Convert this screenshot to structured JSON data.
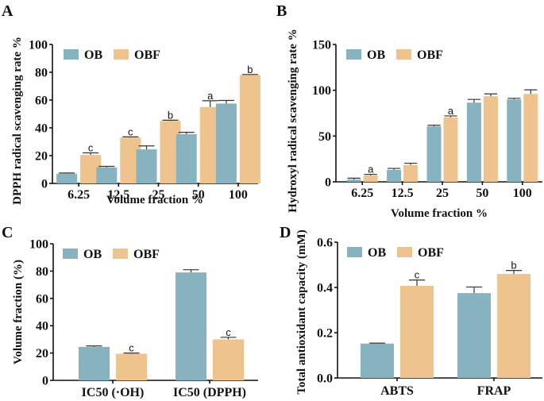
{
  "colors": {
    "OB": "#86b3bf",
    "OBF": "#efc38d"
  },
  "chart_data": [
    {
      "panel": "A",
      "type": "bar",
      "title": "",
      "xlabel": "Volume fraction %",
      "ylabel": "DPPH radical scavenging rate %",
      "ylim": [
        0,
        100
      ],
      "yticks": [
        0,
        20,
        40,
        60,
        80,
        100
      ],
      "ytick_labels": [
        "0",
        "20",
        "40",
        "60",
        "80",
        "100"
      ],
      "categories": [
        "6.25",
        "12.5",
        "25",
        "50",
        "100"
      ],
      "legend": [
        "OB",
        "OBF"
      ],
      "legend_position": "top-left",
      "series": [
        {
          "name": "OB",
          "values": [
            7,
            11.5,
            24.5,
            35.5,
            57.5
          ],
          "errors": [
            0.5,
            0.8,
            2.5,
            1.3,
            2.2
          ],
          "labels": [
            "",
            "",
            "",
            "",
            ""
          ]
        },
        {
          "name": "OBF",
          "values": [
            20.5,
            33,
            45,
            55,
            78
          ],
          "errors": [
            1.5,
            0.5,
            0.5,
            4.5,
            0.4
          ],
          "labels": [
            "c",
            "c",
            "b",
            "a",
            "b"
          ]
        }
      ]
    },
    {
      "panel": "B",
      "type": "bar",
      "title": "",
      "xlabel": "Volume fraction %",
      "ylabel": "Hydroxyl radical scavenging rate %",
      "ylim": [
        0,
        150
      ],
      "yticks": [
        0,
        50,
        100,
        150
      ],
      "ytick_labels": [
        "0",
        "50",
        "100",
        "150"
      ],
      "categories": [
        "6.25",
        "12.5",
        "25",
        "50",
        "100"
      ],
      "legend": [
        "OB",
        "OBF"
      ],
      "legend_position": "top-left",
      "series": [
        {
          "name": "OB",
          "values": [
            2.5,
            13,
            60.5,
            86.5,
            90
          ],
          "errors": [
            1.5,
            1.7,
            1.3,
            3.5,
            1.2
          ],
          "labels": [
            "",
            "",
            "",
            "",
            ""
          ]
        },
        {
          "name": "OBF",
          "values": [
            7,
            18.5,
            70.5,
            93.5,
            96
          ],
          "errors": [
            1.2,
            1.8,
            1.5,
            2.5,
            4.5
          ],
          "labels": [
            "a",
            "",
            "a",
            "",
            ""
          ]
        }
      ]
    },
    {
      "panel": "C",
      "type": "bar",
      "title": "",
      "xlabel": "",
      "ylabel": "Volume fraction (%)",
      "ylim": [
        0,
        100
      ],
      "yticks": [
        0,
        20,
        40,
        60,
        80,
        100
      ],
      "ytick_labels": [
        "0",
        "20",
        "40",
        "60",
        "80",
        "100"
      ],
      "categories": [
        "IC50 (·OH)",
        "IC50 (DPPH)"
      ],
      "legend": [
        "OB",
        "OBF"
      ],
      "legend_position": "top-left",
      "series": [
        {
          "name": "OB",
          "values": [
            24.5,
            79
          ],
          "errors": [
            0.7,
            2
          ],
          "labels": [
            "",
            ""
          ]
        },
        {
          "name": "OBF",
          "values": [
            19.5,
            30
          ],
          "errors": [
            0.5,
            1.5
          ],
          "labels": [
            "c",
            "c"
          ]
        }
      ]
    },
    {
      "panel": "D",
      "type": "bar",
      "title": "",
      "xlabel": "",
      "ylabel": "Total antioxidant capacity (mM)",
      "ylim": [
        0,
        0.6
      ],
      "yticks": [
        0,
        0.2,
        0.4,
        0.6
      ],
      "ytick_labels": [
        "0.0",
        "0.2",
        "0.4",
        "0.6"
      ],
      "categories": [
        "ABTS",
        "FRAP"
      ],
      "legend": [
        "OB",
        "OBF"
      ],
      "legend_position": "top-left",
      "series": [
        {
          "name": "OB",
          "values": [
            0.152,
            0.375
          ],
          "errors": [
            0.002,
            0.027
          ],
          "labels": [
            "",
            ""
          ]
        },
        {
          "name": "OBF",
          "values": [
            0.407,
            0.46
          ],
          "errors": [
            0.026,
            0.015
          ],
          "labels": [
            "c",
            "b"
          ]
        }
      ]
    }
  ]
}
